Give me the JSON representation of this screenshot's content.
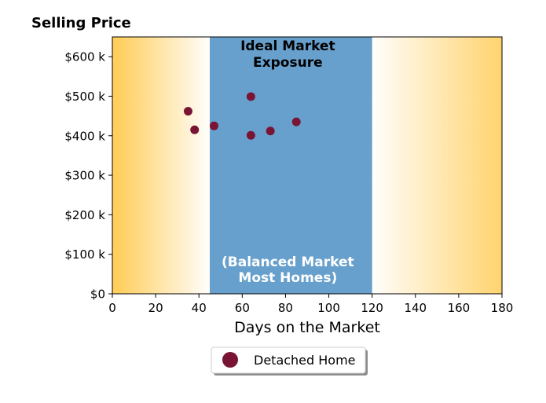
{
  "chart_data": {
    "type": "scatter",
    "title": "Selling Price",
    "xlabel": "Days on the Market",
    "ylabel": "",
    "xlim": [
      0,
      180
    ],
    "ylim": [
      0,
      650000
    ],
    "x_ticks": [
      0,
      20,
      40,
      60,
      80,
      100,
      120,
      140,
      160,
      180
    ],
    "x_tick_labels": [
      "0",
      "20",
      "40",
      "60",
      "80",
      "100",
      "120",
      "140",
      "160",
      "180"
    ],
    "y_ticks": [
      0,
      100000,
      200000,
      300000,
      400000,
      500000,
      600000
    ],
    "y_tick_labels": [
      "$0",
      "$100 k",
      "$200 k",
      "$300 k",
      "$400 k",
      "$500 k",
      "$600 k"
    ],
    "grid": false,
    "legend_position": "below",
    "series": [
      {
        "name": "Detached Home",
        "color": "#7a1434",
        "points": [
          {
            "x": 35,
            "y": 462000
          },
          {
            "x": 38,
            "y": 415000
          },
          {
            "x": 47,
            "y": 425000
          },
          {
            "x": 64,
            "y": 499000
          },
          {
            "x": 64,
            "y": 401000
          },
          {
            "x": 73,
            "y": 412000
          },
          {
            "x": 85,
            "y": 435000
          }
        ]
      }
    ],
    "zones": {
      "balanced": {
        "x_range": [
          45,
          120
        ],
        "color": "#67a0cc",
        "title_line1": "Ideal Market",
        "title_line2": "Exposure",
        "subtitle_line1": "(Balanced Market",
        "subtitle_line2": "Most Homes)"
      },
      "gradient_color": "#ffcc55"
    }
  }
}
